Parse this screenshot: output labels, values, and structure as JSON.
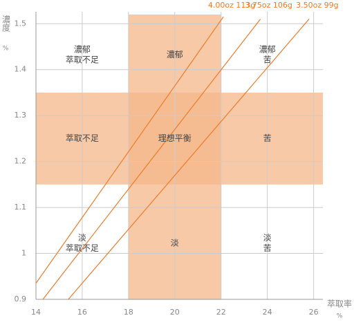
{
  "chart_data": {
    "type": "line",
    "x_label": "萃取率",
    "x_unit": "%",
    "y_label": "濃度",
    "y_unit": "%",
    "xlim": [
      14,
      26.4
    ],
    "ylim": [
      0.9,
      1.52
    ],
    "xticks": [
      14,
      16,
      18,
      20,
      22,
      24,
      26
    ],
    "yticks": [
      0.9,
      1,
      1.1,
      1.2,
      1.3,
      1.4,
      1.5
    ],
    "grid": true,
    "ideal_x": [
      18,
      22
    ],
    "ideal_y": [
      1.15,
      1.35
    ],
    "band_color": "#f4b78a",
    "series": [
      {
        "name": "4.00oz 113g",
        "color": "#f07a2a",
        "x": [
          14,
          22.1
        ],
        "values": [
          0.935,
          1.515
        ]
      },
      {
        "name": "3.75oz 106g",
        "color": "#f07a2a",
        "x": [
          14.3,
          23.7
        ],
        "values": [
          0.9,
          1.51
        ]
      },
      {
        "name": "3.50oz 99g",
        "color": "#f07a2a",
        "x": [
          15.4,
          25.8
        ],
        "values": [
          0.9,
          1.51
        ]
      }
    ],
    "annotations": [
      {
        "x": 16,
        "y": 1.432,
        "lines": [
          "濃郁",
          "萃取不足"
        ]
      },
      {
        "x": 20,
        "y": 1.432,
        "lines": [
          "濃郁"
        ]
      },
      {
        "x": 24,
        "y": 1.432,
        "lines": [
          "濃郁",
          "苦"
        ]
      },
      {
        "x": 16,
        "y": 1.25,
        "lines": [
          "萃取不足"
        ]
      },
      {
        "x": 20,
        "y": 1.25,
        "lines": [
          "理想平衡"
        ]
      },
      {
        "x": 24,
        "y": 1.25,
        "lines": [
          "苦"
        ]
      },
      {
        "x": 16,
        "y": 1.022,
        "lines": [
          "淡",
          "萃取不足"
        ]
      },
      {
        "x": 20,
        "y": 1.022,
        "lines": [
          "淡"
        ]
      },
      {
        "x": 24,
        "y": 1.022,
        "lines": [
          "淡",
          "苦"
        ]
      }
    ]
  }
}
